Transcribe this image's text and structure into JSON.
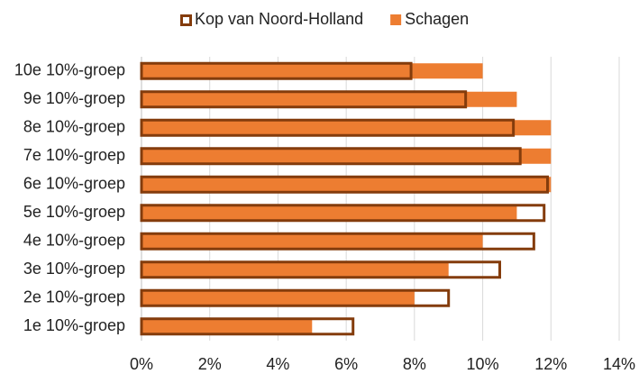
{
  "chart_data": {
    "type": "bar",
    "orientation": "horizontal",
    "categories": [
      "10e 10%-groep",
      "9e 10%-groep",
      "8e 10%-groep",
      "7e 10%-groep",
      "6e 10%-groep",
      "5e 10%-groep",
      "4e 10%-groep",
      "3e 10%-groep",
      "2e 10%-groep",
      "1e 10%-groep"
    ],
    "series": [
      {
        "name": "Kop van Noord-Holland",
        "color": "#843c0c",
        "style": "outline",
        "values": [
          7.9,
          9.5,
          10.9,
          11.1,
          11.9,
          11.8,
          11.5,
          10.5,
          9.0,
          6.2
        ]
      },
      {
        "name": "Schagen",
        "color": "#ed7d31",
        "style": "filled",
        "values": [
          10,
          11,
          12,
          12,
          12,
          11,
          10,
          9,
          8,
          5
        ]
      }
    ],
    "xlim": [
      0,
      14
    ],
    "xticks": [
      {
        "value": 0,
        "label": "0%"
      },
      {
        "value": 2,
        "label": "2%"
      },
      {
        "value": 4,
        "label": "4%"
      },
      {
        "value": 6,
        "label": "6%"
      },
      {
        "value": 8,
        "label": "8%"
      },
      {
        "value": 10,
        "label": "10%"
      },
      {
        "value": 12,
        "label": "12%"
      },
      {
        "value": 14,
        "label": "14%"
      }
    ],
    "grid": true,
    "legend": "top"
  }
}
